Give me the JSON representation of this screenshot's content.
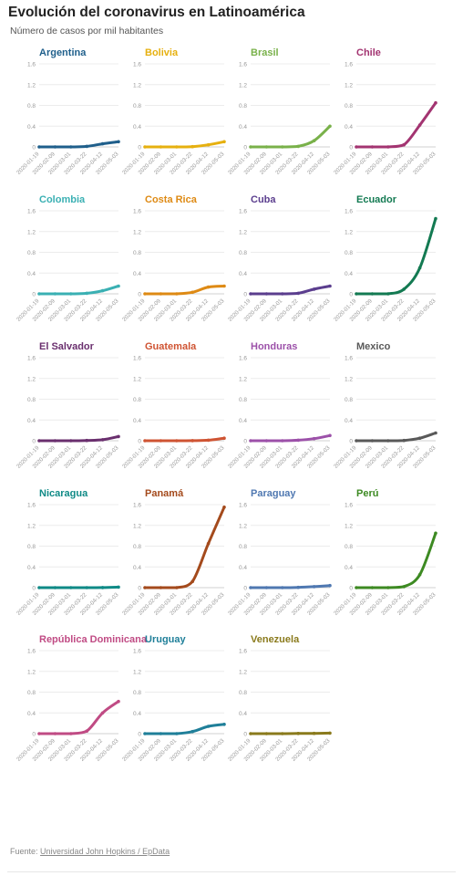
{
  "header": {
    "title": "Evolución del coronavirus en Latinoamérica",
    "subtitle": "Número de casos por mil habitantes"
  },
  "footer": {
    "source_label": "Fuente:",
    "source_link": "Universidad John Hopkins / EpData"
  },
  "chart_data": {
    "type": "line",
    "layout": "small-multiples",
    "grid": true,
    "y_ticks": [
      "0",
      "0.4",
      "0.8",
      "1.2",
      "1.6"
    ],
    "ylim": [
      0,
      1.6
    ],
    "x_ticks": [
      "2020-01-19",
      "2020-02-09",
      "2020-03-01",
      "2020-03-22",
      "2020-04-12",
      "2020-05-03"
    ],
    "x": [
      "2020-01-19",
      "2020-02-09",
      "2020-03-01",
      "2020-03-22",
      "2020-04-12",
      "2020-05-03"
    ],
    "series": [
      {
        "name": "Argentina",
        "color": "#1f5f8b",
        "values": [
          0,
          0,
          0,
          0.01,
          0.06,
          0.1
        ]
      },
      {
        "name": "Bolivia",
        "color": "#e6b00f",
        "values": [
          0,
          0,
          0,
          0.005,
          0.04,
          0.1
        ]
      },
      {
        "name": "Brasil",
        "color": "#79b14a",
        "values": [
          0,
          0,
          0,
          0.01,
          0.12,
          0.4
        ]
      },
      {
        "name": "Chile",
        "color": "#a33471",
        "values": [
          0,
          0,
          0,
          0.04,
          0.42,
          0.85
        ]
      },
      {
        "name": "Colombia",
        "color": "#3ab0b3",
        "values": [
          0,
          0,
          0,
          0.01,
          0.06,
          0.15
        ]
      },
      {
        "name": "Costa Rica",
        "color": "#de8a14",
        "values": [
          0,
          0,
          0,
          0.03,
          0.13,
          0.15
        ]
      },
      {
        "name": "Cuba",
        "color": "#5b3e8e",
        "values": [
          0,
          0,
          0,
          0.01,
          0.09,
          0.15
        ]
      },
      {
        "name": "Ecuador",
        "color": "#137a52",
        "values": [
          0,
          0,
          0,
          0.09,
          0.5,
          1.45
        ]
      },
      {
        "name": "El Salvador",
        "color": "#6a2f6e",
        "values": [
          0,
          0,
          0,
          0.005,
          0.02,
          0.08
        ]
      },
      {
        "name": "Guatemala",
        "color": "#cf5433",
        "values": [
          0,
          0,
          0,
          0.002,
          0.01,
          0.05
        ]
      },
      {
        "name": "Honduras",
        "color": "#9c51a9",
        "values": [
          0,
          0,
          0,
          0.01,
          0.04,
          0.1
        ]
      },
      {
        "name": "Mexico",
        "color": "#595959",
        "values": [
          0,
          0,
          0,
          0.005,
          0.05,
          0.15
        ]
      },
      {
        "name": "Nicaragua",
        "color": "#0f8a86",
        "values": [
          0,
          0,
          0,
          0,
          0.002,
          0.01
        ]
      },
      {
        "name": "Panamá",
        "color": "#a44a1c",
        "values": [
          0,
          0,
          0,
          0.12,
          0.85,
          1.55
        ]
      },
      {
        "name": "Paraguay",
        "color": "#4f78b1",
        "values": [
          0,
          0,
          0,
          0.005,
          0.02,
          0.04
        ]
      },
      {
        "name": "Perú",
        "color": "#3d8a22",
        "values": [
          0,
          0,
          0,
          0.02,
          0.25,
          1.05
        ]
      },
      {
        "name": "República Dominicana",
        "color": "#c04b84",
        "values": [
          0,
          0,
          0,
          0.05,
          0.4,
          0.62
        ]
      },
      {
        "name": "Uruguay",
        "color": "#1f7f99",
        "values": [
          0,
          0,
          0,
          0.04,
          0.14,
          0.18
        ]
      },
      {
        "name": "Venezuela",
        "color": "#8a7a1c",
        "values": [
          0,
          0,
          0,
          0.003,
          0.006,
          0.01
        ]
      }
    ]
  }
}
